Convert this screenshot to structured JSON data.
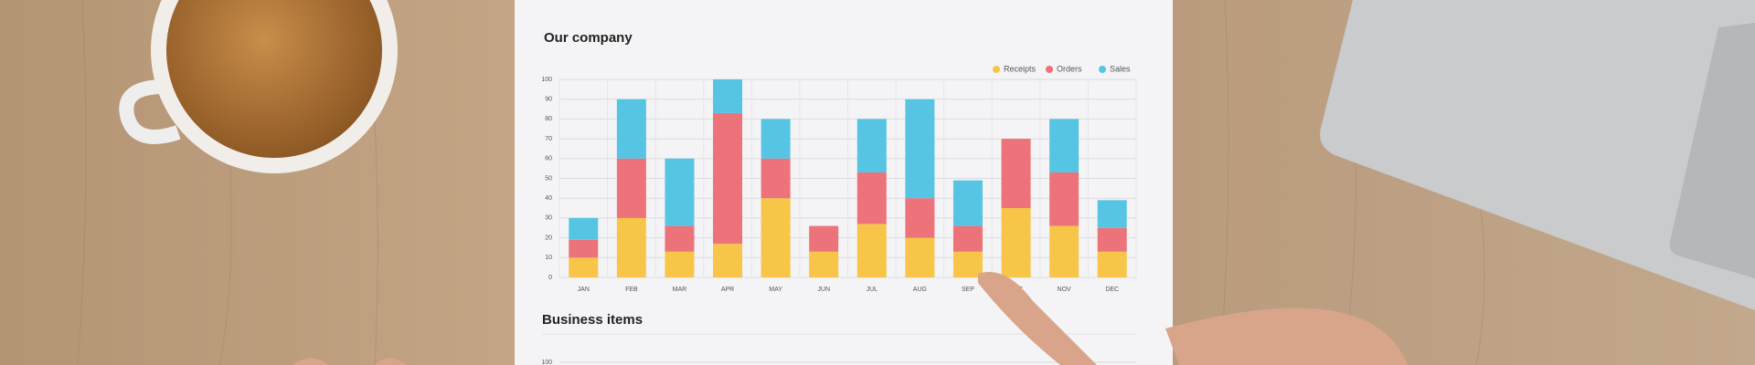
{
  "chart_data": [
    {
      "type": "bar",
      "title": "Our company",
      "categories": [
        "JAN",
        "FEB",
        "MAR",
        "APR",
        "MAY",
        "JUN",
        "JUL",
        "AUG",
        "SEP",
        "OCT",
        "NOV",
        "DEC"
      ],
      "series": [
        {
          "name": "Receipts",
          "color": "#f7c548",
          "values": [
            10,
            30,
            13,
            17,
            40,
            13,
            27,
            20,
            13,
            35,
            26,
            13
          ]
        },
        {
          "name": "Orders",
          "color": "#ec7379",
          "values": [
            9,
            30,
            13,
            66,
            20,
            13,
            26,
            20,
            13,
            35,
            27,
            12
          ]
        },
        {
          "name": "Sales",
          "color": "#56c5e4",
          "values": [
            11,
            30,
            34,
            17,
            20,
            0,
            27,
            50,
            23,
            0,
            27,
            14
          ]
        }
      ],
      "stacked": true,
      "ylim": [
        0,
        100
      ],
      "yticks": [
        0,
        10,
        20,
        30,
        40,
        50,
        60,
        70,
        80,
        90,
        100
      ],
      "grid": true,
      "legend": "top-right"
    },
    {
      "type": "bar",
      "title": "Business items",
      "yticks": [
        100
      ]
    }
  ]
}
